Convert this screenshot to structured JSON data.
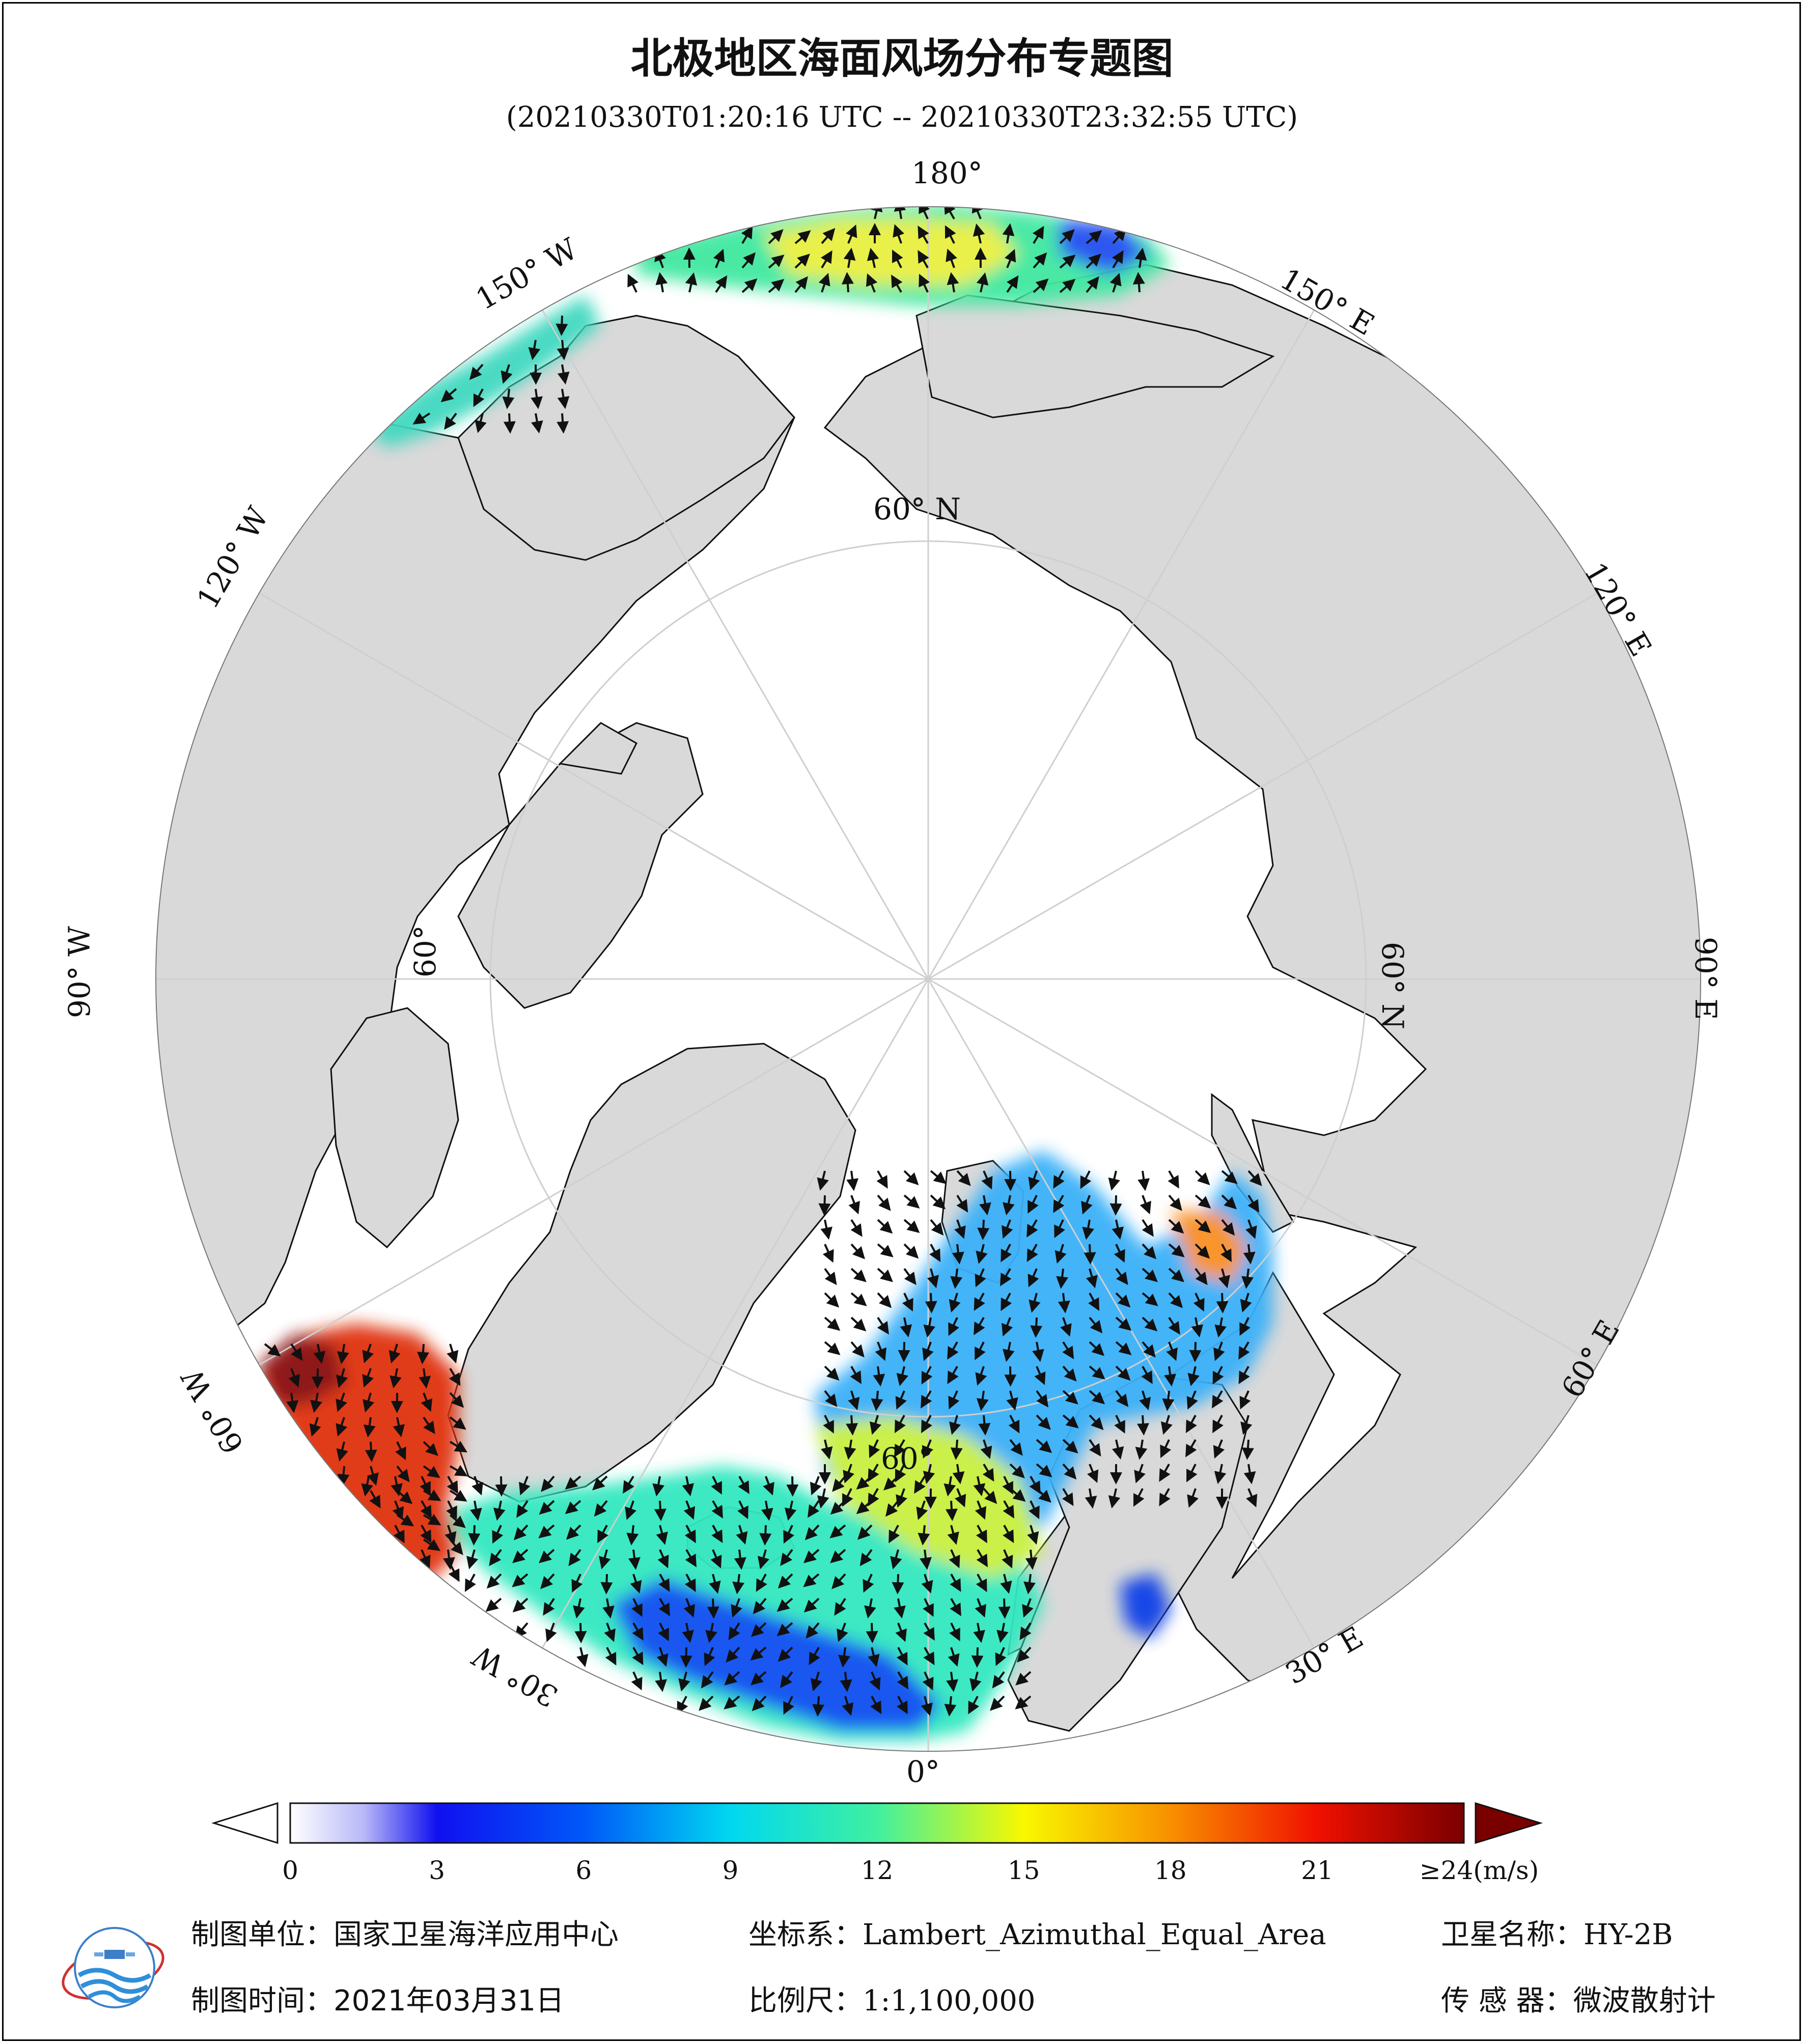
{
  "title": "北极地区海面风场分布专题图",
  "subtitle": "(20210330T01:20:16 UTC -- 20210330T23:32:55 UTC)",
  "map": {
    "projection_center": "North Pole",
    "longitude_labels": [
      "180°",
      "150° E",
      "120° E",
      "90° E",
      "60° E",
      "30° E",
      "0°",
      "30° W",
      "60° W",
      "90° W",
      "120° W",
      "150° W"
    ],
    "latitude_labels": [
      "60° N",
      "60° N",
      "60°",
      "60°"
    ],
    "colors": {
      "land": "#d9d9d9",
      "ocean_ice": "#ffffff",
      "coast": "#111111",
      "arrow": "#111111"
    }
  },
  "colorbar": {
    "ticks": [
      "0",
      "3",
      "6",
      "9",
      "12",
      "15",
      "18",
      "21"
    ],
    "last_tick": "≥24(m/s)",
    "stops": [
      {
        "v": 0,
        "c": "#ffffff"
      },
      {
        "v": 1.5,
        "c": "#b8b8f8"
      },
      {
        "v": 3,
        "c": "#1010f0"
      },
      {
        "v": 6,
        "c": "#0058f8"
      },
      {
        "v": 9,
        "c": "#00d8f0"
      },
      {
        "v": 12,
        "c": "#40f0a0"
      },
      {
        "v": 15,
        "c": "#f8f800"
      },
      {
        "v": 18,
        "c": "#f89000"
      },
      {
        "v": 21,
        "c": "#f01000"
      },
      {
        "v": 24,
        "c": "#7a0000"
      }
    ],
    "overflow_color": "#7a0000"
  },
  "footer": {
    "unit_label": "制图单位：",
    "unit_value": "国家卫星海洋应用中心",
    "crs_label": "坐标系：",
    "crs_value": "Lambert_Azimuthal_Equal_Area",
    "sat_label": "卫星名称：",
    "sat_value": "HY-2B",
    "time_label": "制图时间：",
    "time_value": "2021年03月31日",
    "scale_label": "比例尺：",
    "scale_value": "1:1,100,000",
    "sensor_label": "传 感 器：",
    "sensor_value": "微波散射计"
  }
}
